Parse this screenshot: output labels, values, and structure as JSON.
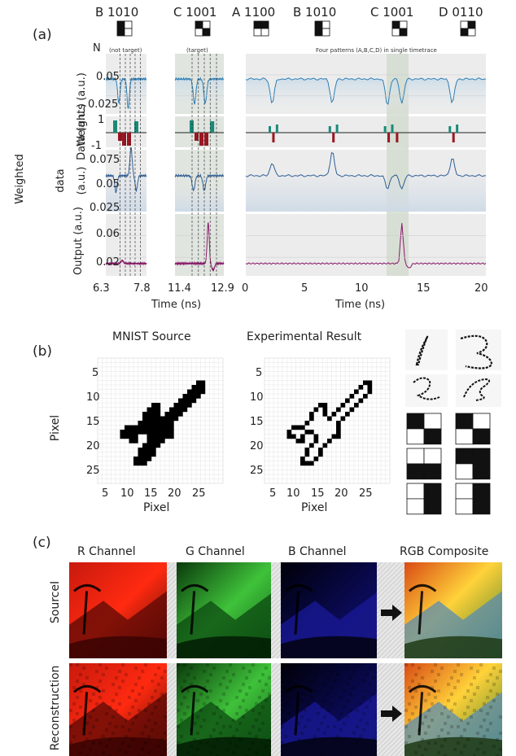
{
  "panel_a": {
    "label": "(a)",
    "n_label": "N",
    "patterns": [
      {
        "letter": "B",
        "code": "1010",
        "bits": [
          1,
          0,
          1,
          0
        ]
      },
      {
        "letter": "C",
        "code": "1001",
        "bits": [
          1,
          0,
          0,
          1
        ]
      },
      {
        "letter": "A",
        "code": "1100",
        "bits": [
          1,
          1,
          0,
          0
        ]
      },
      {
        "letter": "B",
        "code": "1010",
        "bits": [
          1,
          0,
          1,
          0
        ]
      },
      {
        "letter": "C",
        "code": "1001",
        "bits": [
          1,
          0,
          0,
          1
        ]
      },
      {
        "letter": "D",
        "code": "0110",
        "bits": [
          0,
          1,
          1,
          0
        ]
      }
    ],
    "note_not_target": "(not target)",
    "note_target": "(target)",
    "note_four": "Four patterns (A,B,C,D) in single timetrace",
    "row_labels": {
      "data": "Data (a.u.)",
      "weights": "Weights (a.u.)",
      "weighted_1": "Weighted",
      "weighted_2": "data",
      "weighted_3": "(a.u.)",
      "output": "Output (a.u.)"
    },
    "yticks": {
      "data": [
        "0.05",
        "0.025"
      ],
      "weights": [
        "1",
        "-1"
      ],
      "weighted": [
        "0.075",
        "0.05",
        "0.025"
      ],
      "output": [
        "0.06",
        "0.02"
      ]
    },
    "xticks_left": [
      "6.3",
      "7.8"
    ],
    "xticks_mid": [
      "11.4",
      "12.9"
    ],
    "xticks_right": [
      "0",
      "5",
      "10",
      "15",
      "20"
    ],
    "xlabel": "Time (ns)",
    "colors": {
      "data": "#2e7fb5",
      "weighted": "#2f5f96",
      "output": "#8a1a6a",
      "pos": "#1a8a78",
      "neg": "#9a1622"
    }
  },
  "panel_b": {
    "label": "(b)",
    "title_source": "MNIST Source",
    "title_result": "Experimental Result",
    "ylabel": "Pixel",
    "xlabel": "Pixel",
    "yticks": [
      "5",
      "10",
      "15",
      "20",
      "25"
    ],
    "xticks": [
      "5",
      "10",
      "15",
      "20",
      "25"
    ]
  },
  "panel_c": {
    "label": "(c)",
    "columns": [
      "R Channel",
      "G Channel",
      "B Channel",
      "RGB Composite"
    ],
    "rows": [
      "SourceI",
      "Reconstruction"
    ]
  }
}
